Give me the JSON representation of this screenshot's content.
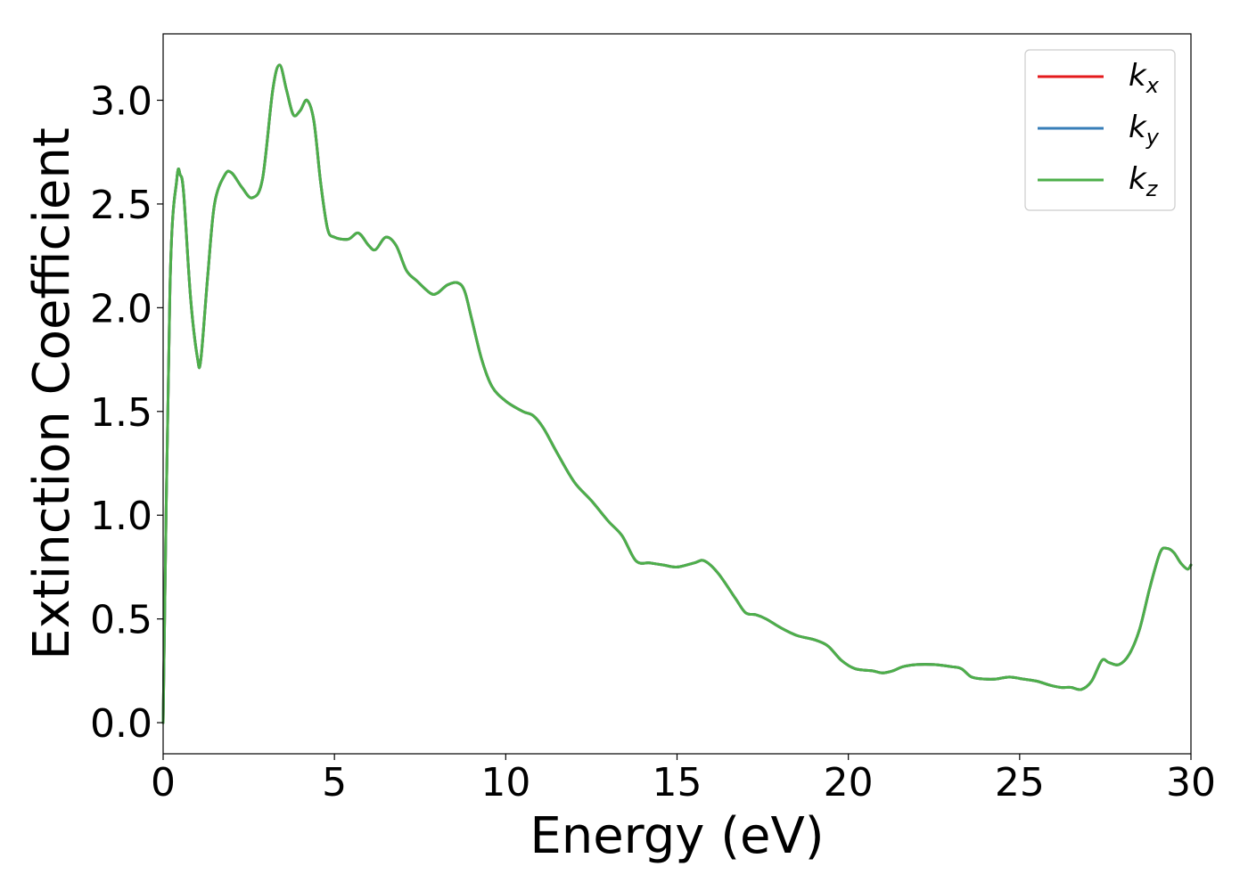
{
  "chart_data": {
    "type": "line",
    "title": "",
    "xlabel": "Energy (eV)",
    "ylabel": "Extinction Coefficient",
    "xlim": [
      0,
      30
    ],
    "ylim": [
      -0.15,
      3.32
    ],
    "xticks": [
      0,
      5,
      10,
      15,
      20,
      25,
      30
    ],
    "yticks": [
      "0.0",
      "0.5",
      "1.0",
      "1.5",
      "2.0",
      "2.5",
      "3.0"
    ],
    "grid": false,
    "legend_position": "top-right",
    "series": [
      {
        "name": "k_x",
        "legend_base": "k",
        "legend_sub": "x",
        "color": "#e41a1c",
        "x": [
          0,
          0.2,
          0.4,
          0.5,
          0.6,
          0.8,
          1.0,
          1.1,
          1.3,
          1.5,
          1.8,
          2.0,
          2.3,
          2.6,
          2.9,
          3.2,
          3.4,
          3.6,
          3.8,
          4.0,
          4.2,
          4.4,
          4.6,
          4.8,
          5.0,
          5.4,
          5.7,
          6.0,
          6.2,
          6.5,
          6.8,
          7.1,
          7.4,
          7.8,
          8.0,
          8.3,
          8.6,
          8.8,
          9.0,
          9.3,
          9.6,
          10.0,
          10.5,
          10.8,
          11.1,
          11.5,
          12.0,
          12.5,
          13.0,
          13.4,
          13.8,
          14.2,
          14.6,
          15.0,
          15.5,
          15.8,
          16.2,
          16.7,
          17.0,
          17.3,
          17.6,
          18.0,
          18.5,
          19.0,
          19.4,
          19.8,
          20.2,
          20.7,
          21.0,
          21.3,
          21.6,
          22.0,
          22.5,
          23.0,
          23.3,
          23.6,
          24.0,
          24.3,
          24.7,
          25.1,
          25.5,
          25.9,
          26.2,
          26.5,
          26.8,
          27.1,
          27.4,
          27.6,
          27.9,
          28.2,
          28.5,
          28.8,
          29.1,
          29.3,
          29.5,
          29.7,
          29.9,
          30.0
        ],
        "y": [
          0.0,
          2.1,
          2.62,
          2.64,
          2.55,
          2.05,
          1.76,
          1.75,
          2.15,
          2.5,
          2.64,
          2.65,
          2.58,
          2.53,
          2.62,
          3.05,
          3.17,
          3.05,
          2.93,
          2.95,
          3.0,
          2.9,
          2.6,
          2.38,
          2.34,
          2.33,
          2.36,
          2.3,
          2.28,
          2.34,
          2.3,
          2.18,
          2.13,
          2.07,
          2.07,
          2.11,
          2.12,
          2.08,
          1.95,
          1.75,
          1.62,
          1.55,
          1.5,
          1.48,
          1.42,
          1.3,
          1.16,
          1.07,
          0.97,
          0.9,
          0.78,
          0.77,
          0.76,
          0.75,
          0.77,
          0.78,
          0.72,
          0.6,
          0.53,
          0.52,
          0.5,
          0.46,
          0.42,
          0.4,
          0.37,
          0.3,
          0.26,
          0.25,
          0.24,
          0.25,
          0.27,
          0.28,
          0.28,
          0.27,
          0.26,
          0.22,
          0.21,
          0.21,
          0.22,
          0.21,
          0.2,
          0.18,
          0.17,
          0.17,
          0.16,
          0.2,
          0.3,
          0.29,
          0.28,
          0.33,
          0.45,
          0.65,
          0.82,
          0.84,
          0.82,
          0.77,
          0.74,
          0.76
        ]
      },
      {
        "name": "k_y",
        "legend_base": "k",
        "legend_sub": "y",
        "color": "#377eb8",
        "x": [
          0,
          0.2,
          0.4,
          0.5,
          0.6,
          0.8,
          1.0,
          1.1,
          1.3,
          1.5,
          1.8,
          2.0,
          2.3,
          2.6,
          2.9,
          3.2,
          3.4,
          3.6,
          3.8,
          4.0,
          4.2,
          4.4,
          4.6,
          4.8,
          5.0,
          5.4,
          5.7,
          6.0,
          6.2,
          6.5,
          6.8,
          7.1,
          7.4,
          7.8,
          8.0,
          8.3,
          8.6,
          8.8,
          9.0,
          9.3,
          9.6,
          10.0,
          10.5,
          10.8,
          11.1,
          11.5,
          12.0,
          12.5,
          13.0,
          13.4,
          13.8,
          14.2,
          14.6,
          15.0,
          15.5,
          15.8,
          16.2,
          16.7,
          17.0,
          17.3,
          17.6,
          18.0,
          18.5,
          19.0,
          19.4,
          19.8,
          20.2,
          20.7,
          21.0,
          21.3,
          21.6,
          22.0,
          22.5,
          23.0,
          23.3,
          23.6,
          24.0,
          24.3,
          24.7,
          25.1,
          25.5,
          25.9,
          26.2,
          26.5,
          26.8,
          27.1,
          27.4,
          27.6,
          27.9,
          28.2,
          28.5,
          28.8,
          29.1,
          29.3,
          29.5,
          29.7,
          29.9,
          30.0
        ],
        "y": [
          0.0,
          2.1,
          2.62,
          2.64,
          2.55,
          2.05,
          1.76,
          1.75,
          2.15,
          2.5,
          2.64,
          2.65,
          2.58,
          2.53,
          2.62,
          3.05,
          3.17,
          3.05,
          2.93,
          2.95,
          3.0,
          2.9,
          2.6,
          2.38,
          2.34,
          2.33,
          2.36,
          2.3,
          2.28,
          2.34,
          2.3,
          2.18,
          2.13,
          2.07,
          2.07,
          2.11,
          2.12,
          2.08,
          1.95,
          1.75,
          1.62,
          1.55,
          1.5,
          1.48,
          1.42,
          1.3,
          1.16,
          1.07,
          0.97,
          0.9,
          0.78,
          0.77,
          0.76,
          0.75,
          0.77,
          0.78,
          0.72,
          0.6,
          0.53,
          0.52,
          0.5,
          0.46,
          0.42,
          0.4,
          0.37,
          0.3,
          0.26,
          0.25,
          0.24,
          0.25,
          0.27,
          0.28,
          0.28,
          0.27,
          0.26,
          0.22,
          0.21,
          0.21,
          0.22,
          0.21,
          0.2,
          0.18,
          0.17,
          0.17,
          0.16,
          0.2,
          0.3,
          0.29,
          0.28,
          0.33,
          0.45,
          0.65,
          0.82,
          0.84,
          0.82,
          0.77,
          0.74,
          0.76
        ]
      },
      {
        "name": "k_z",
        "legend_base": "k",
        "legend_sub": "z",
        "color": "#4daf4a",
        "x": [
          0,
          0.2,
          0.4,
          0.5,
          0.6,
          0.8,
          1.0,
          1.1,
          1.3,
          1.5,
          1.8,
          2.0,
          2.3,
          2.6,
          2.9,
          3.2,
          3.4,
          3.6,
          3.8,
          4.0,
          4.2,
          4.4,
          4.6,
          4.8,
          5.0,
          5.4,
          5.7,
          6.0,
          6.2,
          6.5,
          6.8,
          7.1,
          7.4,
          7.8,
          8.0,
          8.3,
          8.6,
          8.8,
          9.0,
          9.3,
          9.6,
          10.0,
          10.5,
          10.8,
          11.1,
          11.5,
          12.0,
          12.5,
          13.0,
          13.4,
          13.8,
          14.2,
          14.6,
          15.0,
          15.5,
          15.8,
          16.2,
          16.7,
          17.0,
          17.3,
          17.6,
          18.0,
          18.5,
          19.0,
          19.4,
          19.8,
          20.2,
          20.7,
          21.0,
          21.3,
          21.6,
          22.0,
          22.5,
          23.0,
          23.3,
          23.6,
          24.0,
          24.3,
          24.7,
          25.1,
          25.5,
          25.9,
          26.2,
          26.5,
          26.8,
          27.1,
          27.4,
          27.6,
          27.9,
          28.2,
          28.5,
          28.8,
          29.1,
          29.3,
          29.5,
          29.7,
          29.9,
          30.0
        ],
        "y": [
          0.0,
          2.1,
          2.62,
          2.64,
          2.55,
          2.05,
          1.76,
          1.75,
          2.15,
          2.5,
          2.64,
          2.65,
          2.58,
          2.53,
          2.62,
          3.05,
          3.17,
          3.05,
          2.93,
          2.95,
          3.0,
          2.9,
          2.6,
          2.38,
          2.34,
          2.33,
          2.36,
          2.3,
          2.28,
          2.34,
          2.3,
          2.18,
          2.13,
          2.07,
          2.07,
          2.11,
          2.12,
          2.08,
          1.95,
          1.75,
          1.62,
          1.55,
          1.5,
          1.48,
          1.42,
          1.3,
          1.16,
          1.07,
          0.97,
          0.9,
          0.78,
          0.77,
          0.76,
          0.75,
          0.77,
          0.78,
          0.72,
          0.6,
          0.53,
          0.52,
          0.5,
          0.46,
          0.42,
          0.4,
          0.37,
          0.3,
          0.26,
          0.25,
          0.24,
          0.25,
          0.27,
          0.28,
          0.28,
          0.27,
          0.26,
          0.22,
          0.21,
          0.21,
          0.22,
          0.21,
          0.2,
          0.18,
          0.17,
          0.17,
          0.16,
          0.2,
          0.3,
          0.29,
          0.28,
          0.33,
          0.45,
          0.65,
          0.82,
          0.84,
          0.82,
          0.77,
          0.74,
          0.76
        ]
      }
    ]
  }
}
